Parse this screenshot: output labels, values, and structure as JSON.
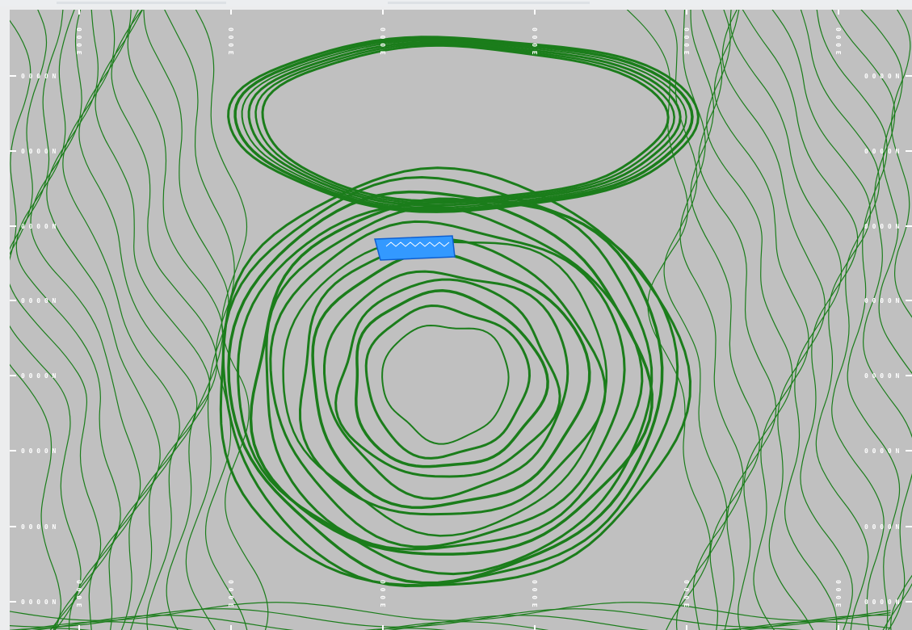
{
  "window": {
    "title": ""
  },
  "map": {
    "background_color": "#c0c0c0",
    "contour_color": "#1b7d1b",
    "selection_color": "#3399ff",
    "selection_outline_color": "#0f5fd0",
    "grid_label_color": "#ffffff"
  },
  "northing_labels_left": [
    "0 0 0 0 N",
    "0 0 0 0 N",
    "0 0 0 0 N",
    "0 0 0 0 N",
    "0 0 0 0 N",
    "0 0 0 0 N",
    "0 0 0 0 N",
    "0 0 0 0 N"
  ],
  "northing_labels_right": [
    "0 0 0 0 N",
    "0 0 0 0 N",
    "0 0 0 0 N",
    "0 0 0 0 N",
    "0 0 0 0 N",
    "0 0 0 0 N",
    "0 0 0 0 N",
    "0 0 0 0 N"
  ],
  "easting_labels_top": [
    "0 0 0 E",
    "0 0 0 E",
    "0 0 0 E",
    "0 0 0 E",
    "0 0 0 E",
    "0 0 0 E"
  ],
  "easting_labels_bottom": [
    "0 0 0 E",
    "0 0 0 E",
    "0 0 0 E",
    "0 0 0 E",
    "0 0 0 E",
    "0 0 0 E"
  ],
  "icons": {
    "selected_polygon": "selection-polygon-icon",
    "contour": "contour-line-icon"
  }
}
